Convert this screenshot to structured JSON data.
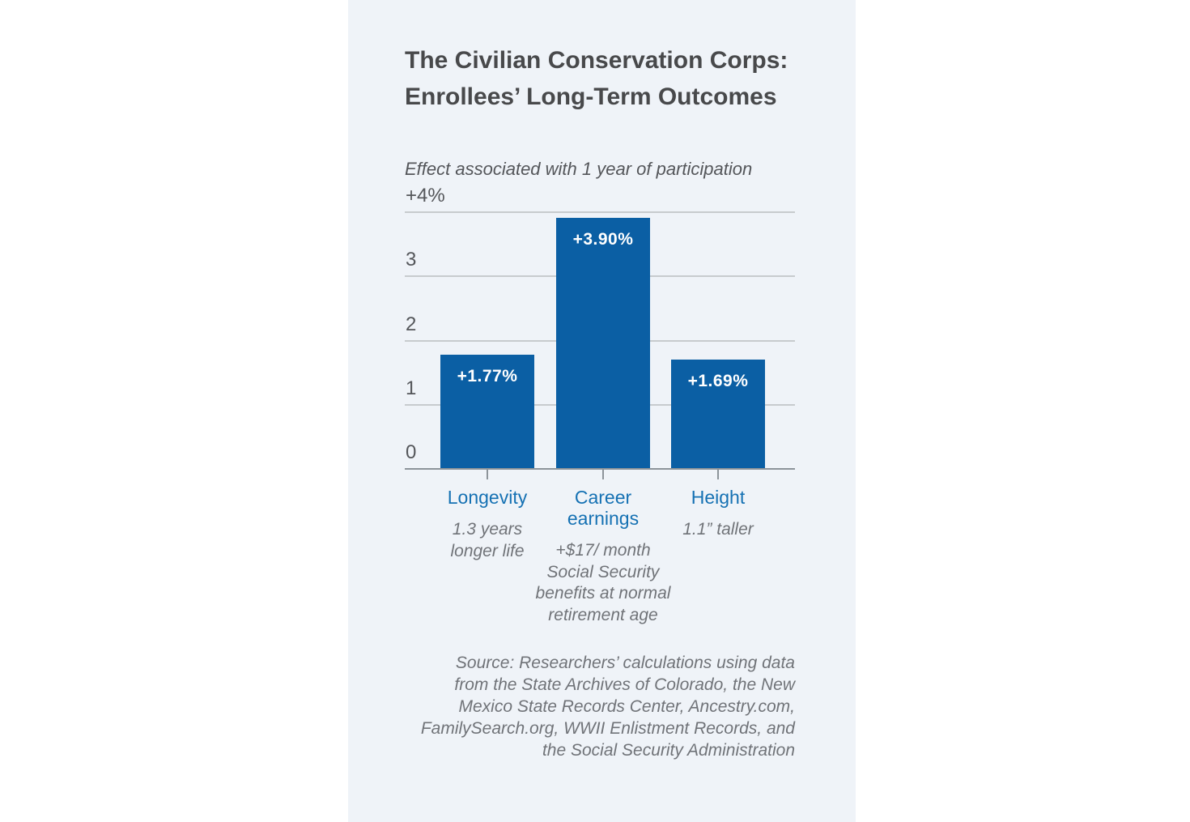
{
  "panel": {
    "background": "#eff3f8"
  },
  "header": {
    "title": "The Civilian Conservation Corps:\nEnrollees’ Long-Term Outcomes",
    "subtitle": "Effect associated with 1 year of participation"
  },
  "chart_data": {
    "type": "bar",
    "title": "The Civilian Conservation Corps: Enrollees’ Long-Term Outcomes",
    "subtitle": "Effect associated with 1 year of participation",
    "categories": [
      "Longevity",
      "Career earnings",
      "Height"
    ],
    "values": [
      1.77,
      3.9,
      1.69
    ],
    "bar_value_labels": [
      "+1.77%",
      "+3.90%",
      "+1.69%"
    ],
    "category_display_labels": [
      "Longevity",
      "Career\nearnings",
      "Height"
    ],
    "category_sublabels": [
      "1.3 years\nlonger life",
      "+$17/ month\nSocial Security\nbenefits at normal\nretirement age",
      "1.1” taller"
    ],
    "xlabel": "",
    "ylabel": "",
    "ylim": [
      0,
      4
    ],
    "ytick_labels": [
      "+4%",
      "3",
      "2",
      "1",
      "0"
    ],
    "grid": true,
    "legend": "none",
    "bar_color": "#0b5fa4",
    "category_label_color": "#1571b3"
  },
  "source_note": "Source: Researchers’ calculations using data\nfrom the State Archives of Colorado, the New\nMexico State Records Center, Ancestry.com,\nFamilySearch.org, WWII Enlistment Records, and\nthe Social Security Administration"
}
